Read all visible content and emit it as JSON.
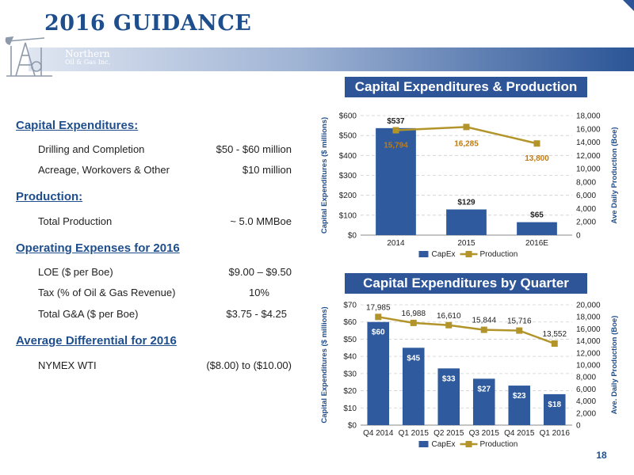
{
  "slide": {
    "title": "2016 GUIDANCE",
    "logo": {
      "line1": "Northern",
      "line2": "Oil & Gas Inc."
    },
    "page_number": "18"
  },
  "guidance": {
    "capex": {
      "heading": "Capital Expenditures:",
      "items": [
        {
          "label": "Drilling and Completion",
          "value": "$50 - $60 million"
        },
        {
          "label": "Acreage, Workovers & Other",
          "value": "$10 million"
        }
      ]
    },
    "production": {
      "heading": "Production:",
      "items": [
        {
          "label": "Total Production",
          "value": "~ 5.0 MMBoe"
        }
      ]
    },
    "opex": {
      "heading": "Operating Expenses for 2016",
      "items": [
        {
          "label": "LOE ($ per Boe)",
          "value": "$9.00 – $9.50"
        },
        {
          "label": "Tax (% of Oil & Gas Revenue)",
          "value": "10%"
        },
        {
          "label": "Total G&A ($ per Boe)",
          "value": "$3.75 - $4.25"
        }
      ]
    },
    "differential": {
      "heading": "Average Differential for 2016",
      "items": [
        {
          "label": "NYMEX WTI",
          "value": "($8.00) to ($10.00)"
        }
      ]
    }
  },
  "colors": {
    "accent": "#1f4e8c",
    "header_bar": "#2d5597",
    "bar": "#2f5b9e",
    "line": "#b3942a"
  },
  "chart_data": [
    {
      "type": "bar",
      "title": "Capital Expenditures & Production",
      "categories": [
        "2014",
        "2015",
        "2016E"
      ],
      "series": [
        {
          "name": "CapEx",
          "type": "bar",
          "axis": "left",
          "values": [
            537,
            129,
            65
          ],
          "labels": [
            "$537",
            "$129",
            "$65"
          ]
        },
        {
          "name": "Production",
          "type": "line",
          "axis": "right",
          "values": [
            15794,
            16285,
            13800
          ],
          "labels": [
            "15,794",
            "16,285",
            "13,800"
          ]
        }
      ],
      "ylabel": "Capital Expenditures ($ millions)",
      "y2label": "Ave Daily Production (Boe)",
      "ylim": [
        0,
        600
      ],
      "yticks": [
        "$0",
        "$100",
        "$200",
        "$300",
        "$400",
        "$500",
        "$600"
      ],
      "y2lim": [
        0,
        18000
      ],
      "y2ticks": [
        "0",
        "2,000",
        "4,000",
        "6,000",
        "8,000",
        "10,000",
        "12,000",
        "14,000",
        "16,000",
        "18,000"
      ],
      "legend_position": "bottom",
      "grid": true
    },
    {
      "type": "bar",
      "title": "Capital Expenditures by Quarter",
      "categories": [
        "Q4 2014",
        "Q1 2015",
        "Q2 2015",
        "Q3 2015",
        "Q4 2015",
        "Q1 2016"
      ],
      "series": [
        {
          "name": "CapEx",
          "type": "bar",
          "axis": "left",
          "values": [
            60,
            45,
            33,
            27,
            23,
            18
          ],
          "labels": [
            "$60",
            "$45",
            "$33",
            "$27",
            "$23",
            "$18"
          ]
        },
        {
          "name": "Production",
          "type": "line",
          "axis": "right",
          "values": [
            17985,
            16988,
            16610,
            15844,
            15716,
            13552
          ],
          "labels": [
            "17,985",
            "16,988",
            "16,610",
            "15,844",
            "15,716",
            "13,552"
          ]
        }
      ],
      "ylabel": "Capital Expenditures ($ millions)",
      "y2label": "Ave. Daily Production (Boe)",
      "ylim": [
        0,
        70
      ],
      "yticks": [
        "$0",
        "$10",
        "$20",
        "$30",
        "$40",
        "$50",
        "$60",
        "$70"
      ],
      "y2lim": [
        0,
        20000
      ],
      "y2ticks": [
        "0",
        "2,000",
        "4,000",
        "6,000",
        "8,000",
        "10,000",
        "12,000",
        "14,000",
        "16,000",
        "18,000",
        "20,000"
      ],
      "legend_position": "bottom",
      "grid": true
    }
  ]
}
